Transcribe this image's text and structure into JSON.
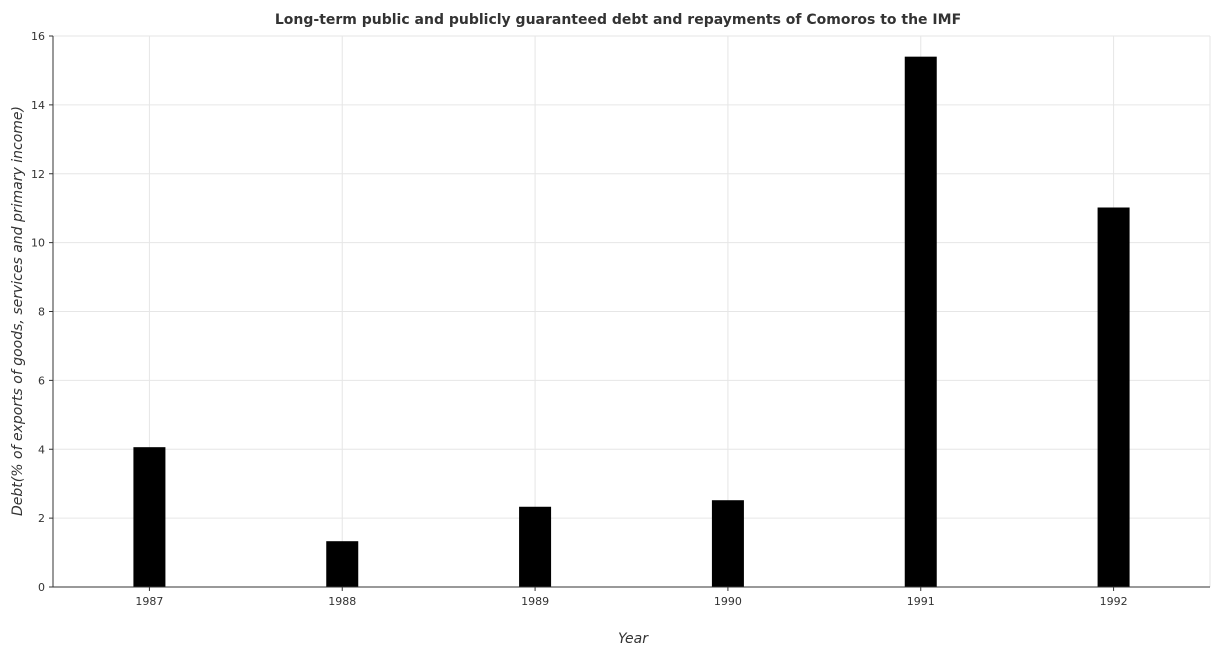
{
  "chart_data": {
    "type": "bar",
    "title": "Long-term public and publicly guaranteed debt and repayments of Comoros to the IMF",
    "xlabel": "Year",
    "ylabel": "Debt(% of exports of goods, services and primary income)",
    "categories": [
      "1987",
      "1988",
      "1989",
      "1990",
      "1991",
      "1992"
    ],
    "values": [
      4.06,
      1.33,
      2.33,
      2.52,
      15.4,
      11.02
    ],
    "ylim": [
      0,
      16
    ],
    "yticks": [
      0,
      2,
      4,
      6,
      8,
      10,
      12,
      14,
      16
    ],
    "grid": true,
    "bar_color": "#000000"
  }
}
